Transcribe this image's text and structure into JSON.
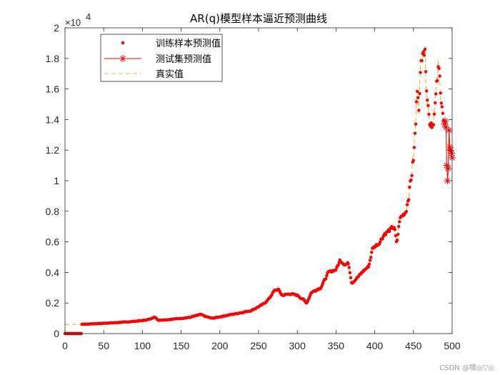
{
  "chart_data": {
    "type": "line",
    "title": "AR(q)模型样本逼近预测曲线",
    "xlabel": "",
    "ylabel": "",
    "xlim": [
      0,
      500
    ],
    "ylim": [
      0,
      20000
    ],
    "exponent_label": "×10",
    "exponent_power": "4",
    "x_ticks": [
      0,
      50,
      100,
      150,
      200,
      250,
      300,
      350,
      400,
      450,
      500
    ],
    "x_tick_labels": [
      "0",
      "50",
      "100",
      "150",
      "200",
      "250",
      "300",
      "350",
      "400",
      "450",
      "500"
    ],
    "y_ticks": [
      0,
      2000,
      4000,
      6000,
      8000,
      10000,
      12000,
      14000,
      16000,
      18000,
      20000
    ],
    "y_tick_labels": [
      "0",
      "0.2",
      "0.4",
      "0.6",
      "0.8",
      "1",
      "1.2",
      "1.4",
      "1.6",
      "1.8",
      "2"
    ],
    "legend": {
      "location": "top-left",
      "entries": [
        "训练样本预测值",
        "测试集预测值",
        "真实值"
      ]
    },
    "colors": {
      "train": "#ff0000",
      "test": "#ff0000",
      "actual": "#edb120",
      "axes": "#262626"
    },
    "anchors": [
      [
        0,
        600
      ],
      [
        20,
        600
      ],
      [
        40,
        650
      ],
      [
        60,
        700
      ],
      [
        80,
        760
      ],
      [
        100,
        850
      ],
      [
        110,
        950
      ],
      [
        115,
        1100
      ],
      [
        120,
        880
      ],
      [
        130,
        900
      ],
      [
        150,
        1000
      ],
      [
        160,
        1050
      ],
      [
        175,
        1250
      ],
      [
        182,
        1100
      ],
      [
        190,
        1000
      ],
      [
        200,
        1100
      ],
      [
        220,
        1300
      ],
      [
        240,
        1500
      ],
      [
        255,
        1900
      ],
      [
        262,
        2200
      ],
      [
        270,
        2800
      ],
      [
        275,
        2900
      ],
      [
        280,
        2500
      ],
      [
        290,
        2600
      ],
      [
        300,
        2500
      ],
      [
        308,
        2200
      ],
      [
        312,
        2000
      ],
      [
        318,
        2700
      ],
      [
        330,
        3000
      ],
      [
        340,
        4000
      ],
      [
        350,
        4200
      ],
      [
        355,
        4800
      ],
      [
        362,
        4500
      ],
      [
        366,
        4600
      ],
      [
        370,
        3300
      ],
      [
        380,
        3800
      ],
      [
        385,
        4100
      ],
      [
        392,
        4400
      ],
      [
        397,
        5600
      ],
      [
        405,
        5900
      ],
      [
        412,
        6500
      ],
      [
        420,
        6800
      ],
      [
        425,
        7000
      ],
      [
        428,
        5800
      ],
      [
        432,
        7500
      ],
      [
        440,
        8000
      ],
      [
        445,
        9500
      ],
      [
        450,
        11500
      ],
      [
        453,
        14000
      ],
      [
        455,
        16500
      ],
      [
        457,
        15000
      ],
      [
        460,
        17800
      ],
      [
        462,
        19400
      ],
      [
        465,
        18000
      ],
      [
        468,
        15500
      ],
      [
        470,
        14000
      ],
      [
        475,
        13800
      ],
      [
        478,
        15000
      ],
      [
        482,
        17300
      ],
      [
        485,
        16000
      ],
      [
        487,
        15000
      ],
      [
        489,
        13500
      ],
      [
        491,
        14000
      ]
    ],
    "actual_range": [
      0,
      500
    ],
    "train_range": [
      22,
      489
    ],
    "train_zero_range": [
      0,
      21
    ],
    "test_points": [
      [
        490,
        13700
      ],
      [
        491,
        13900
      ],
      [
        492,
        13500
      ],
      [
        493,
        11000
      ],
      [
        494,
        10000
      ],
      [
        495,
        10800
      ],
      [
        496,
        13300
      ],
      [
        497,
        12200
      ],
      [
        498,
        12000
      ],
      [
        499,
        11800
      ],
      [
        500,
        11500
      ]
    ]
  },
  "watermark": "CSDN @噢◎▽◎"
}
